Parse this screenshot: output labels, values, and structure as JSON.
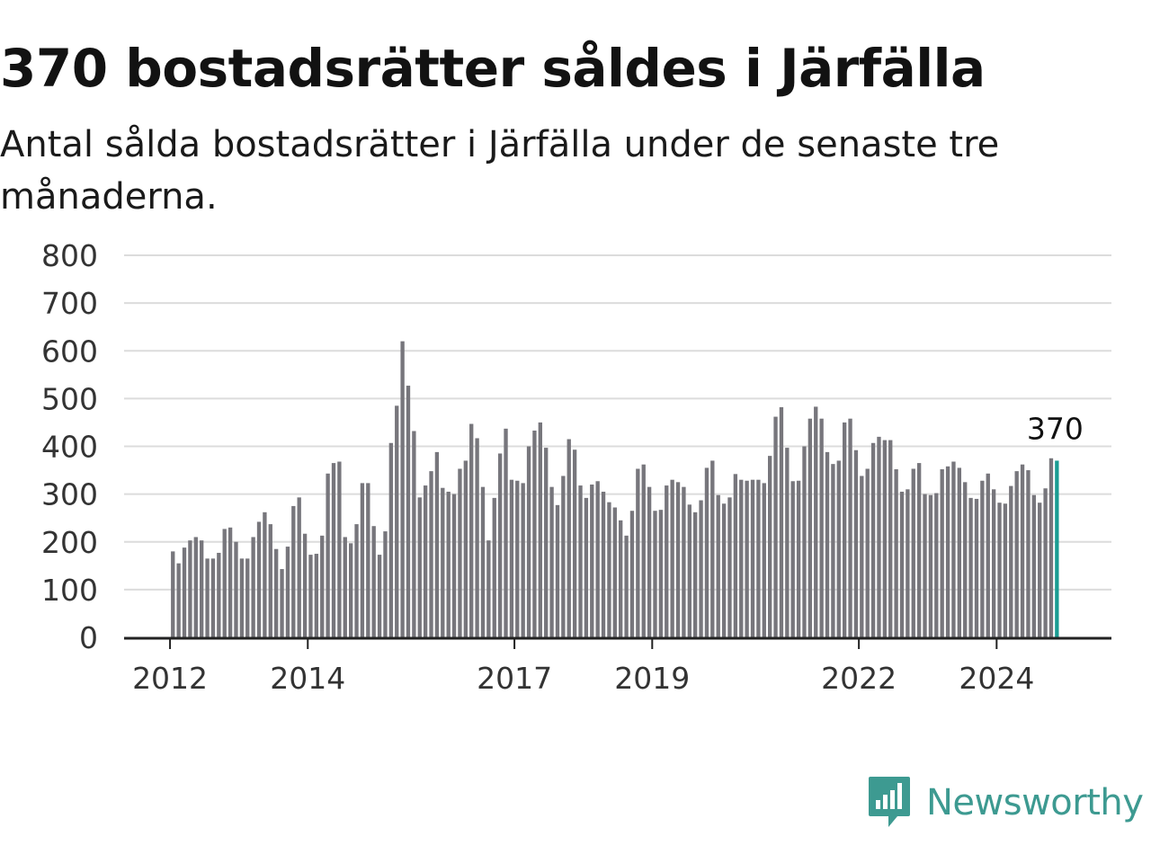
{
  "header": {
    "title": "370 bostadsrätter såldes i Järfälla",
    "subtitle": "Antal sålda bostadsrätter i Järfälla under de senaste tre månaderna."
  },
  "brand": {
    "name": "Newsworthy",
    "icon": "newsworthy-logo-icon",
    "color": "#3d9a91"
  },
  "colors": {
    "bar": "#77767c",
    "highlight": "#1a9c92",
    "grid": "#dcdcdc",
    "axis": "#222222"
  },
  "chart_data": {
    "type": "bar",
    "title": "370 bostadsrätter såldes i Järfälla",
    "subtitle": "Antal sålda bostadsrätter i Järfälla under de senaste tre månaderna.",
    "xlabel": "",
    "ylabel": "",
    "ylim": [
      0,
      800
    ],
    "yticks": [
      "0",
      "100",
      "200",
      "300",
      "400",
      "500",
      "600",
      "700",
      "800"
    ],
    "grid": true,
    "x_range": [
      "2011-05",
      "2025-09"
    ],
    "xticks": [
      {
        "date": "2012-01",
        "label": "2012"
      },
      {
        "date": "2014-01",
        "label": "2014"
      },
      {
        "date": "2017-01",
        "label": "2017"
      },
      {
        "date": "2019-01",
        "label": "2019"
      },
      {
        "date": "2022-01",
        "label": "2022"
      },
      {
        "date": "2024-01",
        "label": "2024"
      }
    ],
    "start": "2012-01",
    "frequency": "monthly",
    "values": [
      180,
      155,
      188,
      203,
      210,
      203,
      165,
      165,
      177,
      227,
      230,
      200,
      165,
      165,
      210,
      242,
      262,
      237,
      185,
      143,
      190,
      275,
      293,
      217,
      173,
      175,
      213,
      343,
      365,
      368,
      210,
      197,
      237,
      323,
      323,
      233,
      173,
      222,
      407,
      485,
      620,
      527,
      432,
      293,
      318,
      348,
      388,
      313,
      305,
      300,
      353,
      370,
      447,
      417,
      315,
      203,
      292,
      385,
      437,
      330,
      328,
      323,
      400,
      433,
      450,
      397,
      315,
      277,
      338,
      415,
      393,
      318,
      292,
      320,
      327,
      305,
      283,
      272,
      245,
      213,
      265,
      353,
      362,
      315,
      265,
      267,
      318,
      330,
      325,
      315,
      278,
      262,
      287,
      355,
      370,
      298,
      280,
      293,
      342,
      330,
      328,
      330,
      330,
      323,
      380,
      462,
      482,
      397,
      327,
      328,
      400,
      458,
      483,
      458,
      388,
      363,
      370,
      450,
      458,
      392,
      338,
      353,
      407,
      420,
      413,
      413,
      352,
      305,
      310,
      353,
      365,
      300,
      298,
      302,
      352,
      358,
      368,
      355,
      325,
      292,
      290,
      328,
      343,
      310,
      282,
      280,
      317,
      348,
      362,
      350,
      298,
      282,
      312,
      375,
      370
    ],
    "highlight": {
      "date": "2024-11",
      "value": 370,
      "label": "370"
    }
  }
}
